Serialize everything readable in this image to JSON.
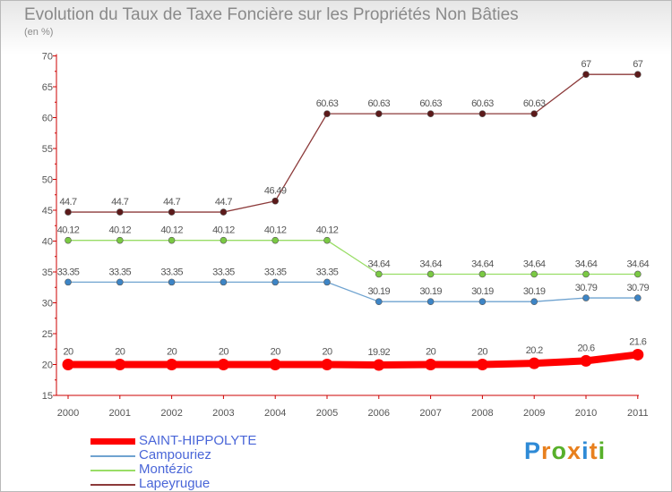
{
  "title": "Evolution du Taux de Taxe Foncière sur les Propriétés Non Bâties",
  "subtitle": "(en %)",
  "brand": {
    "letters": [
      "P",
      "r",
      "o",
      "x",
      "i",
      "t",
      "i"
    ],
    "colors": [
      "#2e8ad6",
      "#e8801e",
      "#57b02a",
      "#e8801e",
      "#2e8ad6",
      "#e8801e",
      "#57b02a"
    ]
  },
  "chart_data": {
    "type": "line",
    "title": "Evolution du Taux de Taxe Foncière sur les Propriétés Non Bâties",
    "ylabel": "(en %)",
    "xlabel": "",
    "x": [
      "2000",
      "2001",
      "2002",
      "2003",
      "2004",
      "2005",
      "2006",
      "2007",
      "2008",
      "2009",
      "2010",
      "2011"
    ],
    "ylim": [
      15,
      70
    ],
    "yticks": [
      15,
      20,
      25,
      30,
      35,
      40,
      45,
      50,
      55,
      60,
      65,
      70
    ],
    "series": [
      {
        "name": "Lapeyrugue",
        "color": "#8c3a3a",
        "marker": "#5c1a1a",
        "values": [
          44.7,
          44.7,
          44.7,
          44.7,
          46.49,
          60.63,
          60.63,
          60.63,
          60.63,
          60.63,
          67,
          67
        ],
        "labels": [
          "44.7",
          "44.7",
          "44.7",
          "44.7",
          "46.49",
          "60.63",
          "60.63",
          "60.63",
          "60.63",
          "60.63",
          "67",
          "67"
        ]
      },
      {
        "name": "Montézic",
        "color": "#99dd66",
        "marker": "#7ac943",
        "values": [
          40.12,
          40.12,
          40.12,
          40.12,
          40.12,
          40.12,
          34.64,
          34.64,
          34.64,
          34.64,
          34.64,
          34.64
        ],
        "labels": [
          "40.12",
          "40.12",
          "40.12",
          "40.12",
          "40.12",
          "40.12",
          "34.64",
          "34.64",
          "34.64",
          "34.64",
          "34.64",
          "34.64"
        ]
      },
      {
        "name": "Campouriez",
        "color": "#6fa3d0",
        "marker": "#3d85c6",
        "values": [
          33.35,
          33.35,
          33.35,
          33.35,
          33.35,
          33.35,
          30.19,
          30.19,
          30.19,
          30.19,
          30.79,
          30.79
        ],
        "labels": [
          "33.35",
          "33.35",
          "33.35",
          "33.35",
          "33.35",
          "33.35",
          "30.19",
          "30.19",
          "30.19",
          "30.19",
          "30.79",
          "30.79"
        ]
      },
      {
        "name": "SAINT-HIPPOLYTE",
        "color": "#ff0000",
        "marker": "#ff0000",
        "values": [
          20,
          20,
          20,
          20,
          20,
          20,
          19.92,
          20,
          20,
          20.2,
          20.6,
          21.6
        ],
        "labels": [
          "20",
          "20",
          "20",
          "20",
          "20",
          "20",
          "19.92",
          "20",
          "20",
          "20.2",
          "20.6",
          "21.6"
        ]
      }
    ],
    "legend": [
      {
        "name": "SAINT-HIPPOLYTE",
        "color": "#ff0000",
        "text_color": "#4a66d8"
      },
      {
        "name": "Campouriez",
        "color": "#6fa3d0",
        "text_color": "#4a66d8"
      },
      {
        "name": "Montézic",
        "color": "#99dd66",
        "text_color": "#4a66d8"
      },
      {
        "name": "Lapeyrugue",
        "color": "#8c3a3a",
        "text_color": "#4a66d8"
      }
    ],
    "legend_position": "bottom-left",
    "grid": false
  }
}
